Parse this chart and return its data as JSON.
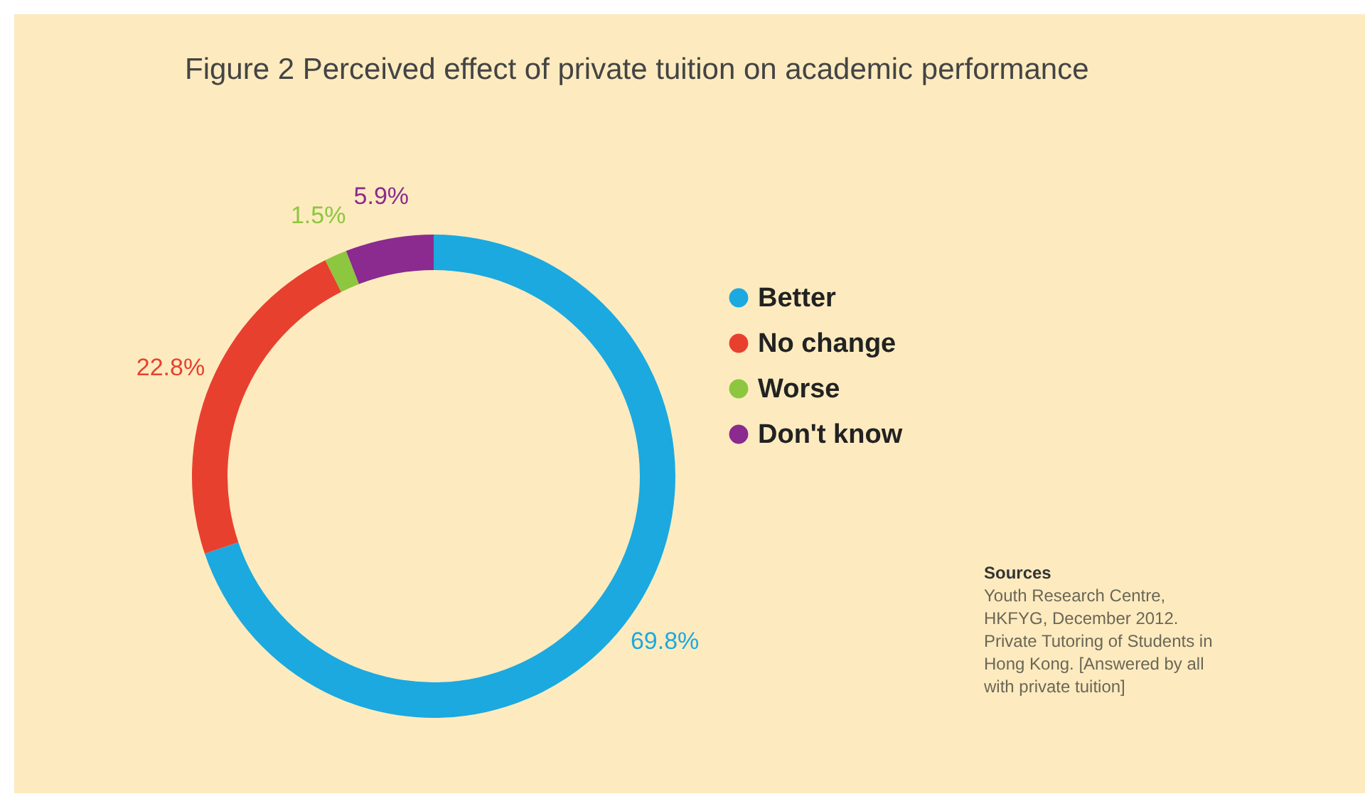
{
  "chart_data": {
    "type": "donut",
    "title": "Figure 2 Perceived effect of private tuition on academic performance",
    "categories": [
      "Better",
      "No change",
      "Worse",
      "Don't know"
    ],
    "values": [
      69.8,
      22.8,
      1.5,
      5.9
    ],
    "colors": [
      "#1ba9e0",
      "#e8402f",
      "#8dc63f",
      "#8b2a8f"
    ],
    "value_labels": [
      "69.8%",
      "22.8%",
      "1.5%",
      "5.9%"
    ],
    "legend": "right",
    "annotations": [
      "Sources",
      "Youth Research Centre, HKFYG, December 2012. Private Tutoring of Students in Hong Kong. [Answered by all with private tuition]"
    ]
  }
}
